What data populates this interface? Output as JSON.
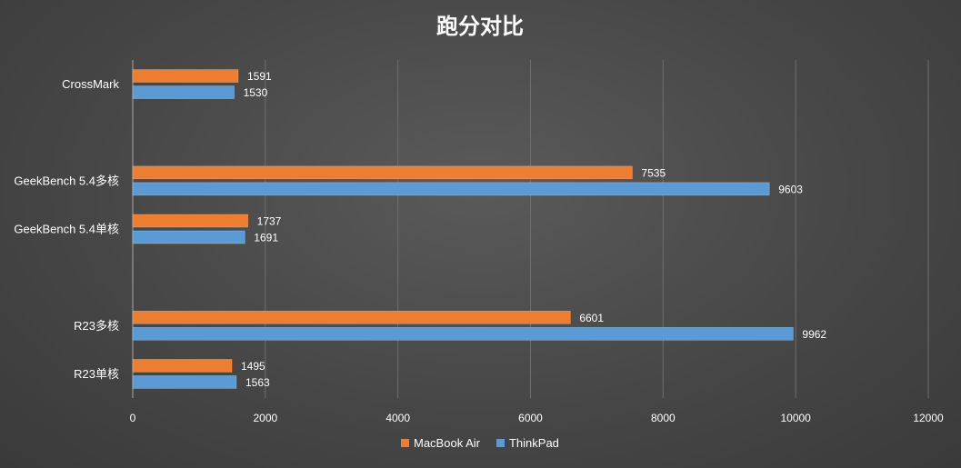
{
  "chart_data": {
    "type": "bar",
    "orientation": "horizontal",
    "title": "跑分对比",
    "xlabel": "",
    "ylabel": "",
    "xlim": [
      0,
      12000
    ],
    "x_ticks": [
      0,
      2000,
      4000,
      6000,
      8000,
      10000,
      12000
    ],
    "grid": true,
    "legend_position": "bottom",
    "categories": [
      "CrossMark",
      "",
      "GeekBench 5.4多核",
      "GeekBench 5.4单核",
      "",
      "R23多核",
      "R23单核"
    ],
    "series": [
      {
        "name": "MacBook Air",
        "color": "#ED7D31",
        "values": [
          1591,
          null,
          7535,
          1737,
          null,
          6601,
          1495
        ]
      },
      {
        "name": "ThinkPad",
        "color": "#5B9BD5",
        "values": [
          1530,
          null,
          9603,
          1691,
          null,
          9962,
          1563
        ]
      }
    ]
  }
}
